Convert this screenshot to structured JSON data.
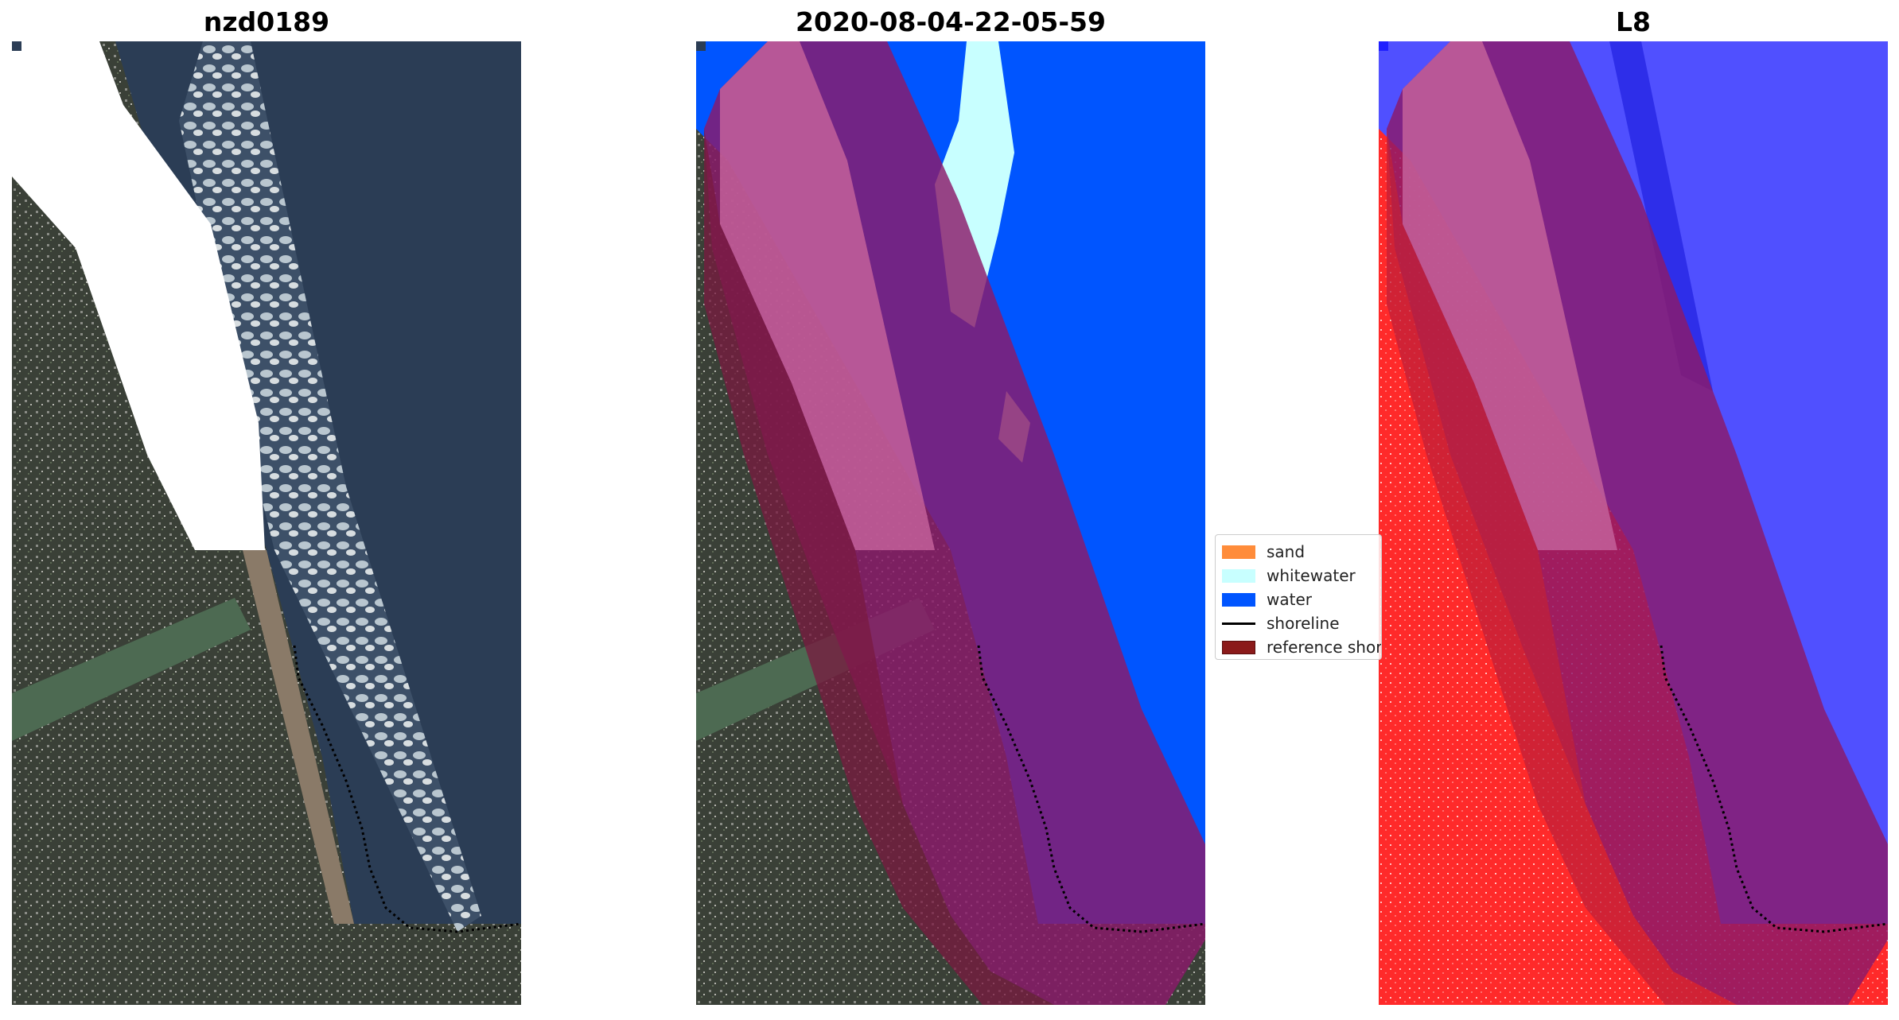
{
  "panels": [
    {
      "title": "nzd0189"
    },
    {
      "title": "2020-08-04-22-05-59"
    },
    {
      "title": "L8"
    }
  ],
  "legend": {
    "items": [
      {
        "label": "sand",
        "color": "#ff8c3a",
        "kind": "patch"
      },
      {
        "label": "whitewater",
        "color": "#c8ffff",
        "kind": "patch"
      },
      {
        "label": "water",
        "color": "#0055ff",
        "kind": "patch"
      },
      {
        "label": "shoreline",
        "color": "#000000",
        "kind": "line"
      },
      {
        "label": "reference shoreline",
        "color": "#8b1a1a",
        "kind": "patch"
      }
    ]
  },
  "colors": {
    "ocean": "#2b3d55",
    "land": "#3c4438",
    "river": "#4d6a52",
    "whitewater": "#c8ffff",
    "water_class": "#0055ff",
    "buffer": "#8b1a4a",
    "index_land": "#ff2020",
    "index_water": "#5050ff"
  }
}
